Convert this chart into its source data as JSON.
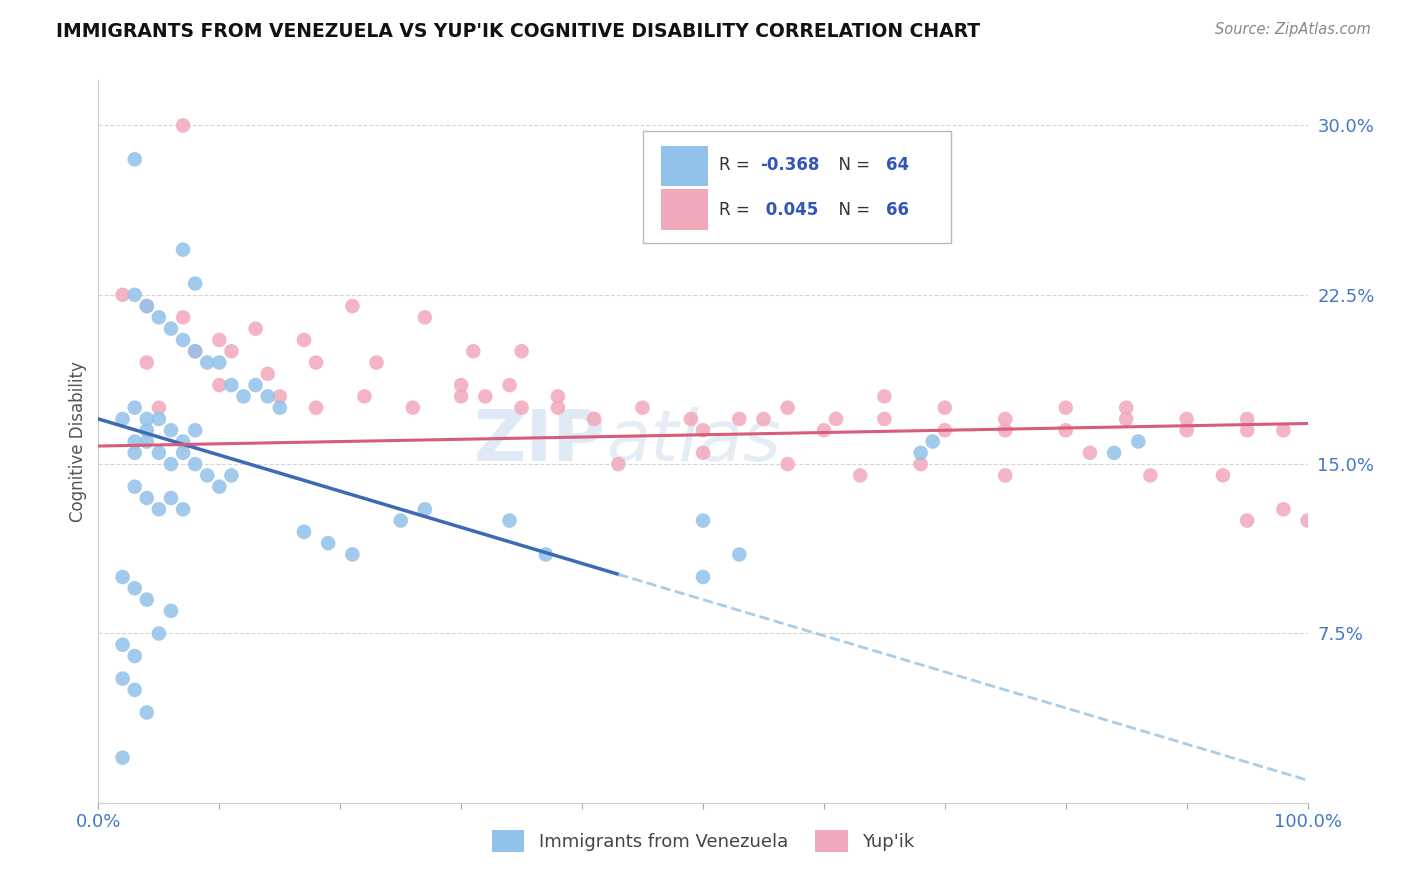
{
  "title": "IMMIGRANTS FROM VENEZUELA VS YUP'IK COGNITIVE DISABILITY CORRELATION CHART",
  "source": "Source: ZipAtlas.com",
  "ylabel": "Cognitive Disability",
  "xlim": [
    0.0,
    100.0
  ],
  "ylim": [
    0.0,
    32.0
  ],
  "blue_R": -0.368,
  "blue_N": 64,
  "pink_R": 0.045,
  "pink_N": 66,
  "blue_color": "#92C1E9",
  "pink_color": "#F2A8BB",
  "blue_line_color": "#3B6BB5",
  "pink_line_color": "#D95B7A",
  "dashed_line_color": "#AACCE8",
  "watermark_zip": "ZIP",
  "watermark_atlas": "atlas",
  "legend_blue_label": "Immigrants from Venezuela",
  "legend_pink_label": "Yup'ik",
  "blue_line_x0": 0.0,
  "blue_line_y0": 17.0,
  "blue_line_x1": 100.0,
  "blue_line_y1": 1.0,
  "blue_solid_end": 43.0,
  "pink_line_x0": 0.0,
  "pink_line_y0": 15.8,
  "pink_line_x1": 100.0,
  "pink_line_y1": 16.8,
  "blue_scatter_x": [
    3,
    7,
    8,
    3,
    4,
    5,
    6,
    7,
    8,
    9,
    10,
    11,
    12,
    13,
    14,
    15,
    3,
    4,
    5,
    6,
    7,
    8,
    4,
    5,
    6,
    7,
    8,
    9,
    10,
    11,
    3,
    4,
    5,
    6,
    7,
    17,
    19,
    21,
    25,
    27,
    34,
    37,
    50,
    53,
    68,
    69,
    84,
    86,
    2,
    3,
    4,
    5,
    6,
    2,
    3,
    2,
    3,
    4,
    2,
    3,
    4,
    2,
    50,
    3
  ],
  "blue_scatter_y": [
    28.5,
    24.5,
    23.0,
    22.5,
    22.0,
    21.5,
    21.0,
    20.5,
    20.0,
    19.5,
    19.5,
    18.5,
    18.0,
    18.5,
    18.0,
    17.5,
    17.5,
    17.0,
    17.0,
    16.5,
    16.0,
    16.5,
    16.0,
    15.5,
    15.0,
    15.5,
    15.0,
    14.5,
    14.0,
    14.5,
    14.0,
    13.5,
    13.0,
    13.5,
    13.0,
    12.0,
    11.5,
    11.0,
    12.5,
    13.0,
    12.5,
    11.0,
    10.0,
    11.0,
    15.5,
    16.0,
    15.5,
    16.0,
    10.0,
    9.5,
    9.0,
    7.5,
    8.5,
    7.0,
    6.5,
    5.5,
    5.0,
    4.0,
    17.0,
    16.0,
    16.5,
    2.0,
    12.5,
    15.5
  ],
  "pink_scatter_x": [
    2,
    4,
    7,
    10,
    13,
    17,
    21,
    4,
    8,
    11,
    14,
    18,
    23,
    27,
    31,
    35,
    5,
    10,
    15,
    18,
    22,
    26,
    30,
    34,
    38,
    30,
    32,
    35,
    38,
    41,
    45,
    49,
    53,
    57,
    61,
    65,
    70,
    75,
    80,
    85,
    90,
    95,
    98,
    50,
    55,
    60,
    65,
    70,
    75,
    80,
    85,
    90,
    95,
    98,
    100,
    43,
    50,
    57,
    63,
    68,
    75,
    82,
    87,
    93,
    95,
    7
  ],
  "pink_scatter_y": [
    22.5,
    22.0,
    21.5,
    20.5,
    21.0,
    20.5,
    22.0,
    19.5,
    20.0,
    20.0,
    19.0,
    19.5,
    19.5,
    21.5,
    20.0,
    20.0,
    17.5,
    18.5,
    18.0,
    17.5,
    18.0,
    17.5,
    18.5,
    18.5,
    17.5,
    18.0,
    18.0,
    17.5,
    18.0,
    17.0,
    17.5,
    17.0,
    17.0,
    17.5,
    17.0,
    18.0,
    17.5,
    17.0,
    17.5,
    17.5,
    17.0,
    17.0,
    16.5,
    16.5,
    17.0,
    16.5,
    17.0,
    16.5,
    16.5,
    16.5,
    17.0,
    16.5,
    16.5,
    13.0,
    12.5,
    15.0,
    15.5,
    15.0,
    14.5,
    15.0,
    14.5,
    15.5,
    14.5,
    14.5,
    12.5,
    30.0
  ]
}
